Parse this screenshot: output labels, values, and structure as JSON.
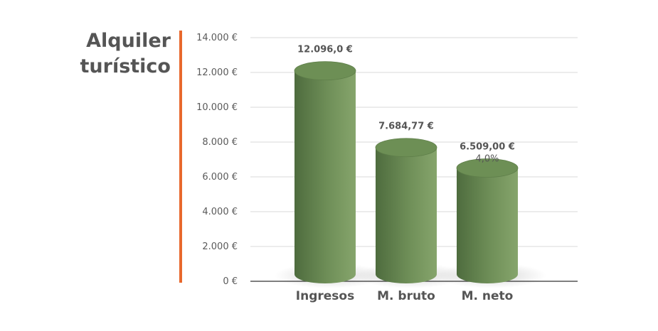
{
  "chart_data": {
    "type": "bar",
    "title": [
      "Alquiler",
      "turístico"
    ],
    "xlabel": "",
    "ylabel": "",
    "categories": [
      "Ingresos",
      "M. bruto",
      "M. neto"
    ],
    "values": [
      12096.0,
      7684.77,
      6509.0
    ],
    "value_labels": [
      "12.096,0 €",
      "7.684,77 €",
      "6.509,00 €"
    ],
    "annotations": [
      "",
      "",
      "4,0%"
    ],
    "ylim": [
      0,
      14000
    ],
    "yticks": [
      0,
      2000,
      4000,
      6000,
      8000,
      10000,
      12000,
      14000
    ],
    "ytick_labels": [
      "0 €",
      "2.000 €",
      "4.000 €",
      "6.000 €",
      "8.000 €",
      "10.000 €",
      "12.000 €",
      "14.000 €"
    ],
    "grid": true,
    "legend": "none",
    "colors": {
      "bar_dark": "#4e6c3e",
      "bar_light": "#86a56c",
      "bar_top": "#6d8f55",
      "accent": "#e8682c",
      "grid": "#d8d8d8",
      "axis": "#555555"
    }
  }
}
